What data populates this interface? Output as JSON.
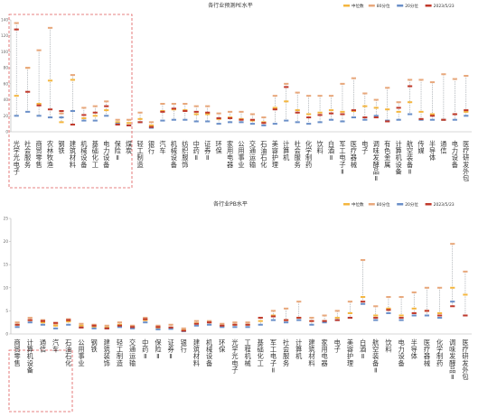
{
  "chart_data": [
    {
      "type": "line",
      "title": "各行业预测PE水平",
      "legend": [
        "中位数",
        "80分位",
        "20分位",
        "2023/5/23"
      ],
      "legend_placement": "top-right",
      "ylim": [
        0,
        140
      ],
      "yticks": [
        0,
        20,
        40,
        60,
        80,
        100,
        120,
        140
      ],
      "grid": false,
      "highlight_group": "first 7 categories (dashed red box)",
      "categories": [
        "光学光电子",
        "社会服务",
        "商贸零售",
        "农林牧渔",
        "钢铁",
        "建筑材料",
        "机械设备",
        "基础化工",
        "电力设备",
        "保险Ⅱ",
        "煤炭",
        "轻工制造",
        "银行",
        "汽车",
        "机械设备",
        "纺织服饰",
        "中药Ⅱ",
        "证券Ⅱ",
        "环保",
        "家用电器",
        "公用事业",
        "交通运输",
        "石油石化",
        "美容护理",
        "计算机",
        "社会服务",
        "化学制药",
        "饮料",
        "白酒Ⅱ",
        "军工电子Ⅱ",
        "医疗器械",
        "电子",
        "调味发酵品Ⅱ",
        "有色金属",
        "计算机设备",
        "航空装备Ⅱ",
        "传媒",
        "半导体",
        "通信",
        "电力设备",
        "医疗研发外包"
      ],
      "series": [
        {
          "name": "中位数",
          "values": [
            45,
            80,
            35,
            64,
            12,
            65,
            17,
            20,
            27,
            12,
            11,
            16,
            8,
            26,
            28,
            27,
            22,
            22,
            16,
            18,
            16,
            14,
            12,
            30,
            38,
            27,
            22,
            24,
            27,
            25,
            26,
            32,
            30,
            28,
            25,
            37,
            25,
            22,
            15,
            22,
            25
          ]
        },
        {
          "name": "80分位",
          "values": [
            136,
            80,
            102,
            130,
            23,
            71,
            30,
            32,
            38,
            15,
            15,
            24,
            12,
            35,
            35,
            35,
            32,
            32,
            23,
            25,
            25,
            22,
            18,
            45,
            60,
            49,
            45,
            45,
            45,
            60,
            67,
            48,
            40,
            55,
            37,
            65,
            65,
            62,
            72,
            66,
            70
          ]
        },
        {
          "name": "20分位",
          "values": [
            20,
            25,
            20,
            18,
            18,
            26,
            14,
            14,
            20,
            10,
            8,
            12,
            5,
            14,
            15,
            15,
            13,
            13,
            10,
            12,
            12,
            10,
            8,
            10,
            14,
            12,
            10,
            12,
            15,
            13,
            18,
            15,
            20,
            14,
            15,
            22,
            15,
            15,
            15,
            15,
            20
          ]
        },
        {
          "name": "2023/5/23",
          "values": [
            128,
            50,
            33,
            28,
            26,
            9,
            21,
            24,
            32,
            9,
            8,
            12,
            6,
            25,
            29,
            26,
            25,
            24,
            17,
            17,
            15,
            15,
            11,
            28,
            56,
            24,
            18,
            21,
            23,
            22,
            27,
            18,
            18,
            13,
            30,
            57,
            16,
            20,
            15,
            22,
            27
          ]
        }
      ]
    },
    {
      "type": "line",
      "title": "各行业PB水平",
      "legend": [
        "中位数",
        "80分位",
        "20分位",
        "2023/5/23"
      ],
      "legend_placement": "top-right",
      "ylim": [
        0,
        25
      ],
      "yticks": [
        0,
        5,
        10,
        15,
        20,
        25
      ],
      "grid": false,
      "highlight_group": "first 4 categories (dashed red box)",
      "categories": [
        "商贸零售",
        "计算机设备",
        "通信",
        "汽车",
        "石油石化",
        "公用事业",
        "钢铁",
        "建筑装饰",
        "轻工制造",
        "交通运输",
        "中药Ⅱ",
        "保险Ⅱ",
        "证券Ⅱ",
        "银行",
        "建筑材料",
        "机械设备",
        "环保",
        "光学光电子",
        "工程机械",
        "基础化工",
        "军工电子Ⅱ",
        "社会服务",
        "计算机",
        "建筑材料",
        "家用电器",
        "电子",
        "美容护理",
        "白酒Ⅱ",
        "航空装备Ⅱ",
        "饮料",
        "电力设备",
        "半导体",
        "医疗器械",
        "化学制药",
        "调味发酵品Ⅱ",
        "医疗研发外包"
      ],
      "series": [
        {
          "name": "中位数",
          "values": [
            2.0,
            3.0,
            2.5,
            1.8,
            2.7,
            1.8,
            1.6,
            1.4,
            2.0,
            1.4,
            3.0,
            1.4,
            1.4,
            0.8,
            2.3,
            2.5,
            1.8,
            2.0,
            2.0,
            2.8,
            4.0,
            3.0,
            3.5,
            2.8,
            2.8,
            3.5,
            4.5,
            8.0,
            4.0,
            5.5,
            4.0,
            5.5,
            5.0,
            4.5,
            10.0,
            8.5
          ]
        },
        {
          "name": "80分位",
          "values": [
            2.5,
            3.5,
            3.0,
            2.2,
            3.2,
            2.2,
            2.0,
            1.8,
            2.5,
            1.8,
            3.5,
            1.8,
            2.0,
            1.2,
            2.8,
            2.8,
            2.2,
            2.5,
            2.5,
            3.5,
            5.0,
            5.5,
            7.0,
            3.5,
            4.0,
            5.0,
            7.0,
            16.0,
            6.0,
            8.0,
            8.0,
            9.0,
            10.0,
            10.0,
            19.5,
            13.5
          ]
        },
        {
          "name": "20分位",
          "values": [
            1.5,
            2.5,
            2.0,
            1.2,
            2.0,
            1.4,
            1.2,
            1.2,
            1.5,
            1.2,
            2.5,
            1.0,
            1.1,
            0.6,
            1.8,
            2.0,
            1.5,
            1.5,
            1.5,
            2.0,
            3.0,
            2.5,
            3.0,
            2.0,
            2.5,
            3.0,
            3.5,
            6.5,
            3.0,
            4.5,
            3.0,
            4.0,
            4.0,
            3.5,
            7.0,
            4.0
          ]
        },
        {
          "name": "2023/5/23",
          "values": [
            2.0,
            3.0,
            2.8,
            2.4,
            3.0,
            1.4,
            1.8,
            1.2,
            1.8,
            1.5,
            3.2,
            1.5,
            1.4,
            0.7,
            2.2,
            2.5,
            1.8,
            2.0,
            2.0,
            3.5,
            3.8,
            3.0,
            3.5,
            2.8,
            2.8,
            3.0,
            3.5,
            7.0,
            3.5,
            5.2,
            3.5,
            4.5,
            5.0,
            4.0,
            6.0,
            4.0
          ]
        }
      ]
    }
  ],
  "colors": {
    "median": "#f4b63f",
    "p80": "#e8a87c",
    "p20": "#6a8fc8",
    "current": "#c0392b",
    "whisker": "#9aa0a6",
    "box": "#e05a5a",
    "axis": "#b0b0b0",
    "text": "#333333"
  }
}
